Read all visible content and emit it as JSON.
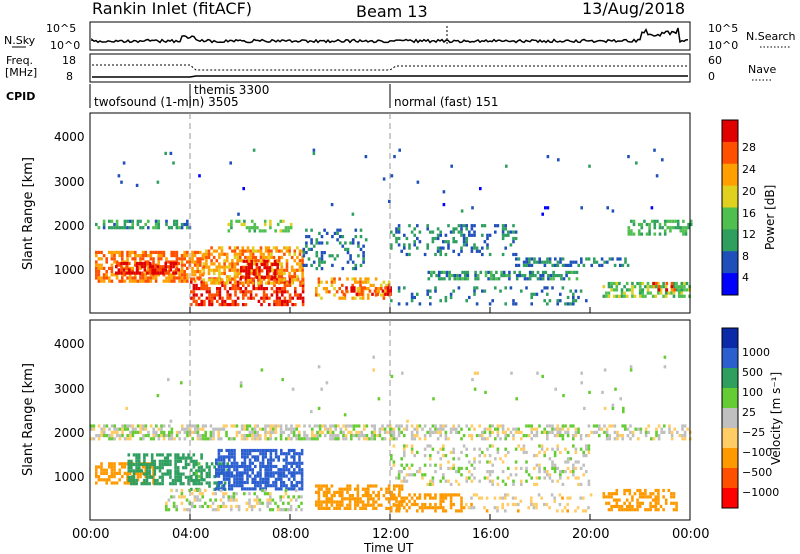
{
  "header": {
    "title": "Rankin Inlet (fitACF)",
    "beam": "Beam 13",
    "date": "13/Aug/2018"
  },
  "side_labels": {
    "nsky": "N.Sky",
    "nsearch": "N.Search",
    "freq": "Freq.",
    "freq_unit": "[MHz]",
    "nave": "Nave",
    "cpid": "CPID"
  },
  "top_axes": {
    "noise_left_ticks": [
      "10^5",
      "10^0"
    ],
    "noise_right_ticks": [
      "10^5",
      "10^0"
    ],
    "freq_left_ticks": [
      "18",
      "8"
    ],
    "nave_right_ticks": [
      "60",
      "0"
    ]
  },
  "cpid_segments": [
    {
      "label": "twofsound (1-min) 3505",
      "start_h": 0
    },
    {
      "label": "themis 3300",
      "start_h": 4
    },
    {
      "label": "normal (fast) 151",
      "start_h": 12
    }
  ],
  "colors": {
    "power": [
      "#0000ff",
      "#1f4fb8",
      "#2e9f5e",
      "#4fbf4f",
      "#e0d020",
      "#ff9f00",
      "#ff5000",
      "#e00000"
    ],
    "velocity": [
      "#ff0000",
      "#ff5000",
      "#ff9900",
      "#ffcc66",
      "#c0c0c0",
      "#66cc33",
      "#2e9f5e",
      "#2b5fd0",
      "#0a2aa8"
    ],
    "ground": "#b0b0b0"
  },
  "chart_data": [
    {
      "type": "heatmap",
      "name": "power",
      "ylabel": "Slant Range [km]",
      "y_ticks": [
        "1000",
        "2000",
        "3000",
        "4000"
      ],
      "ylim": [
        0,
        4500
      ],
      "xlim_hours": [
        0,
        24
      ],
      "colorbar_label": "Power [dB]",
      "colorbar_ticks": [
        "4",
        "8",
        "12",
        "16",
        "20",
        "24",
        "28"
      ],
      "colorbar_range": [
        0,
        32
      ],
      "regions": [
        {
          "t0": 0.2,
          "t1": 4.0,
          "r0": 1900,
          "r1": 2100,
          "level": 10,
          "density": 0.55
        },
        {
          "t0": 0.2,
          "t1": 4.5,
          "r0": 700,
          "r1": 1400,
          "level": 24,
          "density": 0.65
        },
        {
          "t0": 1.0,
          "t1": 3.5,
          "r0": 900,
          "r1": 1150,
          "level": 30,
          "density": 0.7
        },
        {
          "t0": 4.0,
          "t1": 8.5,
          "r0": 200,
          "r1": 800,
          "level": 28,
          "density": 0.55
        },
        {
          "t0": 4.5,
          "t1": 8.5,
          "r0": 700,
          "r1": 1500,
          "level": 22,
          "density": 0.6
        },
        {
          "t0": 6.0,
          "t1": 7.5,
          "r0": 800,
          "r1": 1200,
          "level": 30,
          "density": 0.6
        },
        {
          "t0": 5.5,
          "t1": 8.0,
          "r0": 1850,
          "r1": 2100,
          "level": 14,
          "density": 0.4
        },
        {
          "t0": 9.0,
          "t1": 12.0,
          "r0": 300,
          "r1": 800,
          "level": 22,
          "density": 0.45
        },
        {
          "t0": 10.0,
          "t1": 12.0,
          "r0": 400,
          "r1": 600,
          "level": 28,
          "density": 0.45
        },
        {
          "t0": 8.5,
          "t1": 11.0,
          "r0": 1000,
          "r1": 1900,
          "level": 8,
          "density": 0.25
        },
        {
          "t0": 12.0,
          "t1": 17.0,
          "r0": 1300,
          "r1": 2000,
          "level": 8,
          "density": 0.25
        },
        {
          "t0": 13.5,
          "t1": 19.5,
          "r0": 800,
          "r1": 950,
          "level": 10,
          "density": 0.55
        },
        {
          "t0": 17.0,
          "t1": 21.5,
          "r0": 1050,
          "r1": 1250,
          "level": 8,
          "density": 0.5
        },
        {
          "t0": 20.5,
          "t1": 24.0,
          "r0": 400,
          "r1": 700,
          "level": 14,
          "density": 0.6
        },
        {
          "t0": 22.5,
          "t1": 23.5,
          "r0": 550,
          "r1": 700,
          "level": 26,
          "density": 0.5
        },
        {
          "t0": 21.5,
          "t1": 24.0,
          "r0": 1800,
          "r1": 2100,
          "level": 12,
          "density": 0.5
        },
        {
          "t0": 12.0,
          "t1": 20.0,
          "r0": 200,
          "r1": 600,
          "level": 8,
          "density": 0.15
        },
        {
          "t0": 1.0,
          "t1": 23.0,
          "r0": 2200,
          "r1": 3700,
          "level": 6,
          "density": 0.01
        }
      ]
    },
    {
      "type": "heatmap",
      "name": "velocity",
      "ylabel": "Slant Range [km]",
      "y_ticks": [
        "1000",
        "2000",
        "3000",
        "4000"
      ],
      "ylim": [
        0,
        4500
      ],
      "xlim_hours": [
        0,
        24
      ],
      "xlabel": "Time UT",
      "x_ticks": [
        "00:00",
        "04:00",
        "08:00",
        "12:00",
        "16:00",
        "20:00",
        "00:00"
      ],
      "colorbar_label": "Velocity [m s⁻¹]",
      "colorbar_ticks": [
        "1000",
        "500",
        "100",
        "25",
        "−25",
        "−100",
        "−500",
        "−1000"
      ],
      "regions": [
        {
          "t0": 0.0,
          "t1": 12.0,
          "r0": 1850,
          "r1": 2150,
          "level": 0,
          "density": 0.6
        },
        {
          "t0": 12.0,
          "t1": 24.0,
          "r0": 1850,
          "r1": 2150,
          "level": 0,
          "density": 0.45
        },
        {
          "t0": 0.2,
          "t1": 2.5,
          "r0": 800,
          "r1": 1300,
          "level": -400,
          "density": 0.55
        },
        {
          "t0": 1.5,
          "t1": 4.5,
          "r0": 800,
          "r1": 1500,
          "level": 200,
          "density": 0.6
        },
        {
          "t0": 4.0,
          "t1": 5.5,
          "r0": 700,
          "r1": 1300,
          "level": 150,
          "density": 0.45
        },
        {
          "t0": 5.0,
          "t1": 8.5,
          "r0": 700,
          "r1": 1600,
          "level": 800,
          "density": 0.7
        },
        {
          "t0": 3.0,
          "t1": 8.5,
          "r0": 200,
          "r1": 700,
          "level": 0,
          "density": 0.35
        },
        {
          "t0": 9.0,
          "t1": 12.5,
          "r0": 250,
          "r1": 800,
          "level": -300,
          "density": 0.55
        },
        {
          "t0": 12.0,
          "t1": 15.0,
          "r0": 200,
          "r1": 600,
          "level": -300,
          "density": 0.5
        },
        {
          "t0": 12.0,
          "t1": 20.0,
          "r0": 800,
          "r1": 1700,
          "level": 0,
          "density": 0.25
        },
        {
          "t0": 15.0,
          "t1": 20.0,
          "r0": 200,
          "r1": 600,
          "level": -50,
          "density": 0.2
        },
        {
          "t0": 20.5,
          "t1": 23.5,
          "r0": 200,
          "r1": 700,
          "level": -400,
          "density": 0.5
        },
        {
          "t0": 1.0,
          "t1": 23.0,
          "r0": 2200,
          "r1": 3700,
          "level": 20,
          "density": 0.01
        }
      ]
    }
  ]
}
